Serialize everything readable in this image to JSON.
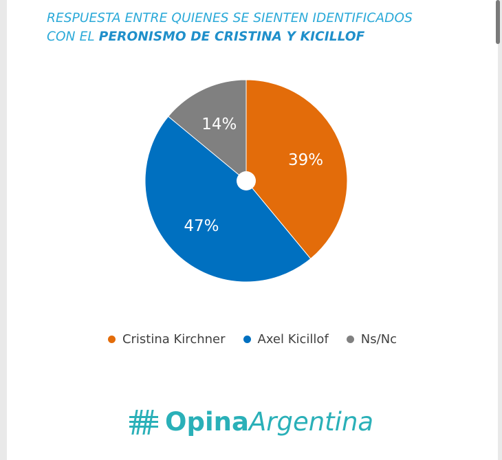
{
  "header": {
    "title_line1": "RESPUESTA ENTRE QUIENES SE SIENTEN IDENTIFICADOS",
    "title_line2_prefix": "CON EL ",
    "title_line2_emph": "PERONISMO DE CRISTINA Y KICILLOF"
  },
  "chart_data": {
    "type": "pie",
    "categories": [
      "Cristina Kirchner",
      "Axel Kicillof",
      "Ns/Nc"
    ],
    "values": [
      39,
      47,
      14
    ],
    "labels": [
      "39%",
      "47%",
      "14%"
    ],
    "colors": [
      "#e36c0a",
      "#0070c0",
      "#808080"
    ],
    "legend_position": "bottom"
  },
  "brand": {
    "name_bold": "Opina",
    "name_italic": "Argentina",
    "icon": "hash-icon"
  }
}
